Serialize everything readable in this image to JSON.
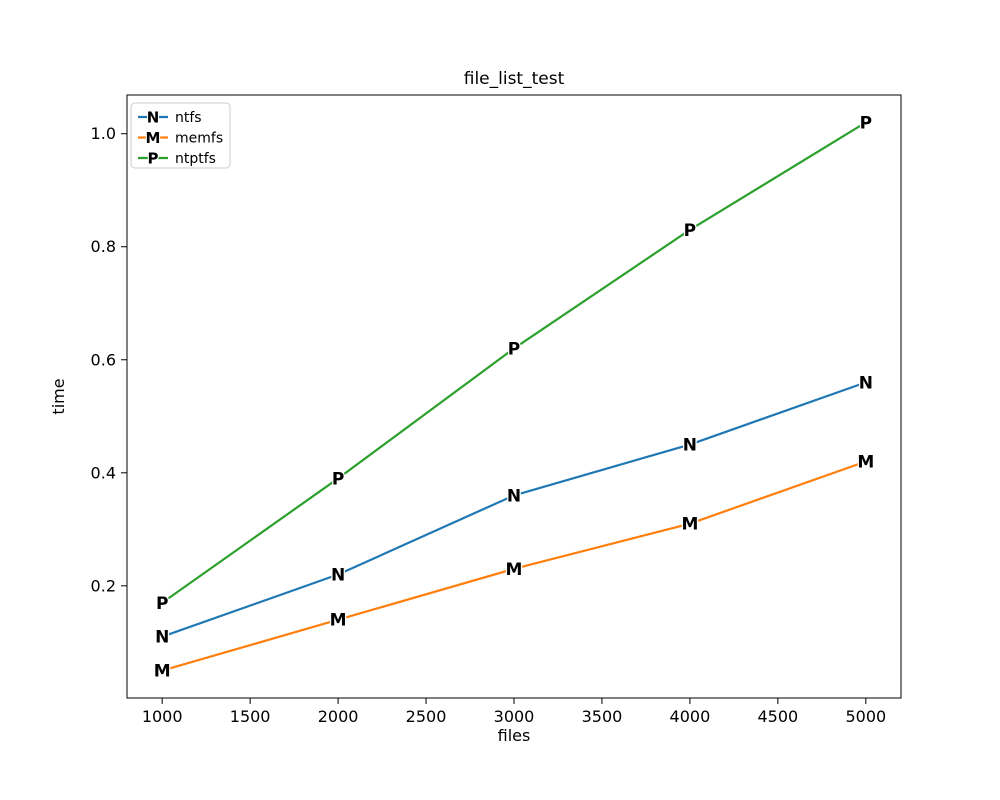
{
  "figure": {
    "background": "#ffffff",
    "spine_color": "#000000",
    "legend_border_color": "#cccccc",
    "legend_background": "#ffffff"
  },
  "chart_data": {
    "type": "line",
    "title": "file_list_test",
    "xlabel": "files",
    "ylabel": "time",
    "x": [
      1000,
      2000,
      3000,
      4000,
      5000
    ],
    "series": [
      {
        "name": "ntfs",
        "color": "#1f77b4",
        "marker": "N",
        "values": [
          0.11,
          0.22,
          0.36,
          0.45,
          0.56
        ]
      },
      {
        "name": "memfs",
        "color": "#ff7f0e",
        "marker": "M",
        "values": [
          0.05,
          0.14,
          0.23,
          0.31,
          0.42
        ]
      },
      {
        "name": "ntptfs",
        "color": "#2ca02c",
        "marker": "P",
        "values": [
          0.17,
          0.39,
          0.62,
          0.83,
          1.02
        ]
      }
    ],
    "xlim": [
      800,
      5200
    ],
    "ylim": [
      0.0015,
      1.0685
    ],
    "x_ticks": [
      1000,
      1500,
      2000,
      2500,
      3000,
      3500,
      4000,
      4500,
      5000
    ],
    "x_tick_labels": [
      "1000",
      "1500",
      "2000",
      "2500",
      "3000",
      "3500",
      "4000",
      "4500",
      "5000"
    ],
    "y_ticks": [
      0.2,
      0.4,
      0.6,
      0.8,
      1.0
    ],
    "y_tick_labels": [
      "0.2",
      "0.4",
      "0.6",
      "0.8",
      "1.0"
    ],
    "grid": false,
    "legend": {
      "position": "upper left",
      "entries": [
        "ntfs",
        "memfs",
        "ntptfs"
      ]
    }
  }
}
